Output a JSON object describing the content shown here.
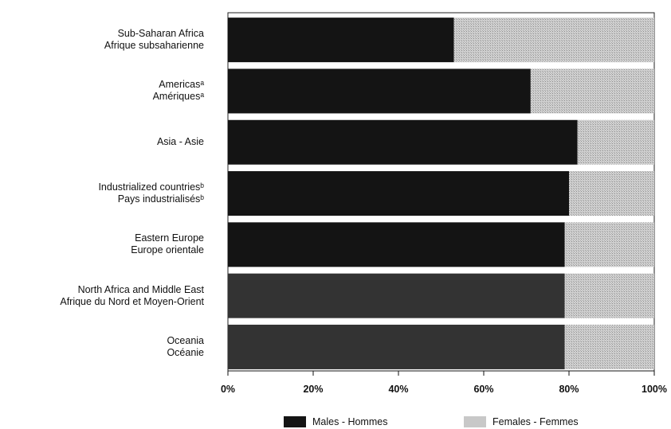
{
  "chart_data": {
    "type": "bar",
    "orientation": "horizontal",
    "stacked": true,
    "categories": [
      [
        "Sub-Saharan Africa",
        "Afrique subsaharienne"
      ],
      [
        "Americasᵃ",
        "Amériquesᵃ"
      ],
      [
        "Asia - Asie"
      ],
      [
        "Industrialized countriesᵇ",
        "Pays industrialisésᵇ"
      ],
      [
        "Eastern Europe",
        "Europe orientale"
      ],
      [
        "North Africa and Middle East",
        "Afrique du Nord et Moyen-Orient"
      ],
      [
        "Oceania",
        "Océanie"
      ]
    ],
    "series": [
      {
        "name": "Males - Hommes",
        "values": [
          53,
          71,
          82,
          80,
          79,
          79,
          79
        ]
      },
      {
        "name": "Females - Femmes",
        "values": [
          47,
          29,
          18,
          20,
          21,
          21,
          21
        ]
      }
    ],
    "xlim": [
      0,
      100
    ],
    "ticks": [
      "0%",
      "20%",
      "40%",
      "60%",
      "80%",
      "100%"
    ],
    "colors": {
      "Males - Hommes": "#141414",
      "Females - Femmes": "#bfbfbf"
    },
    "legend_placement": "bottom"
  }
}
